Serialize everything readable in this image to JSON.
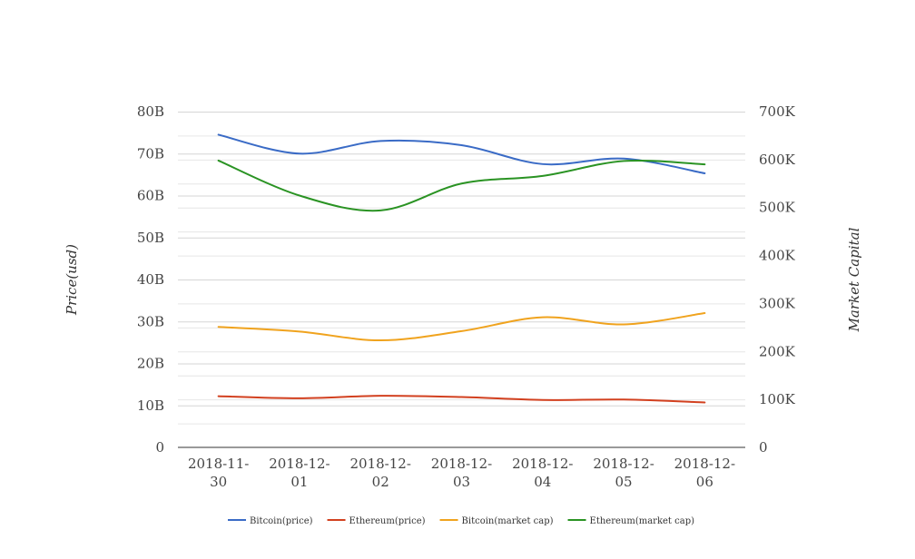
{
  "chart_data": {
    "type": "line",
    "categories": [
      [
        "2018-11-",
        "30"
      ],
      [
        "2018-12-",
        "01"
      ],
      [
        "2018-12-",
        "02"
      ],
      [
        "2018-12-",
        "03"
      ],
      [
        "2018-12-",
        "04"
      ],
      [
        "2018-12-",
        "05"
      ],
      [
        "2018-12-",
        "06"
      ]
    ],
    "y_left": {
      "title": "Price(usd)",
      "ticks": [
        "0",
        "10B",
        "20B",
        "30B",
        "40B",
        "50B",
        "60B",
        "70B",
        "80B"
      ],
      "ylim": [
        0,
        80000000000
      ]
    },
    "y_right": {
      "title": "Market Capital",
      "ticks": [
        "0",
        "100K",
        "200K",
        "300K",
        "400K",
        "500K",
        "600K",
        "700K"
      ],
      "ylim": [
        0,
        700000
      ]
    },
    "series": [
      {
        "name": "Bitcoin(price)",
        "color": "#3a6bc6",
        "axis": "left",
        "values": [
          74500000000,
          70000000000,
          73000000000,
          72000000000,
          67500000000,
          68800000000,
          65300000000
        ]
      },
      {
        "name": "Ethereum(price)",
        "color": "#d2401f",
        "axis": "left",
        "values": [
          12200000000,
          11700000000,
          12300000000,
          12000000000,
          11300000000,
          11400000000,
          10700000000
        ]
      },
      {
        "name": "Bitcoin(market cap)",
        "color": "#f0a31e",
        "axis": "left",
        "values": [
          28700000000,
          27600000000,
          25500000000,
          27700000000,
          31000000000,
          29300000000,
          32000000000
        ]
      },
      {
        "name": "Ethereum(market cap)",
        "color": "#2a9323",
        "axis": "right",
        "values": [
          598000,
          525000,
          494000,
          550000,
          566000,
          597000,
          590000
        ]
      }
    ],
    "grid": true,
    "legend_position": "bottom"
  }
}
